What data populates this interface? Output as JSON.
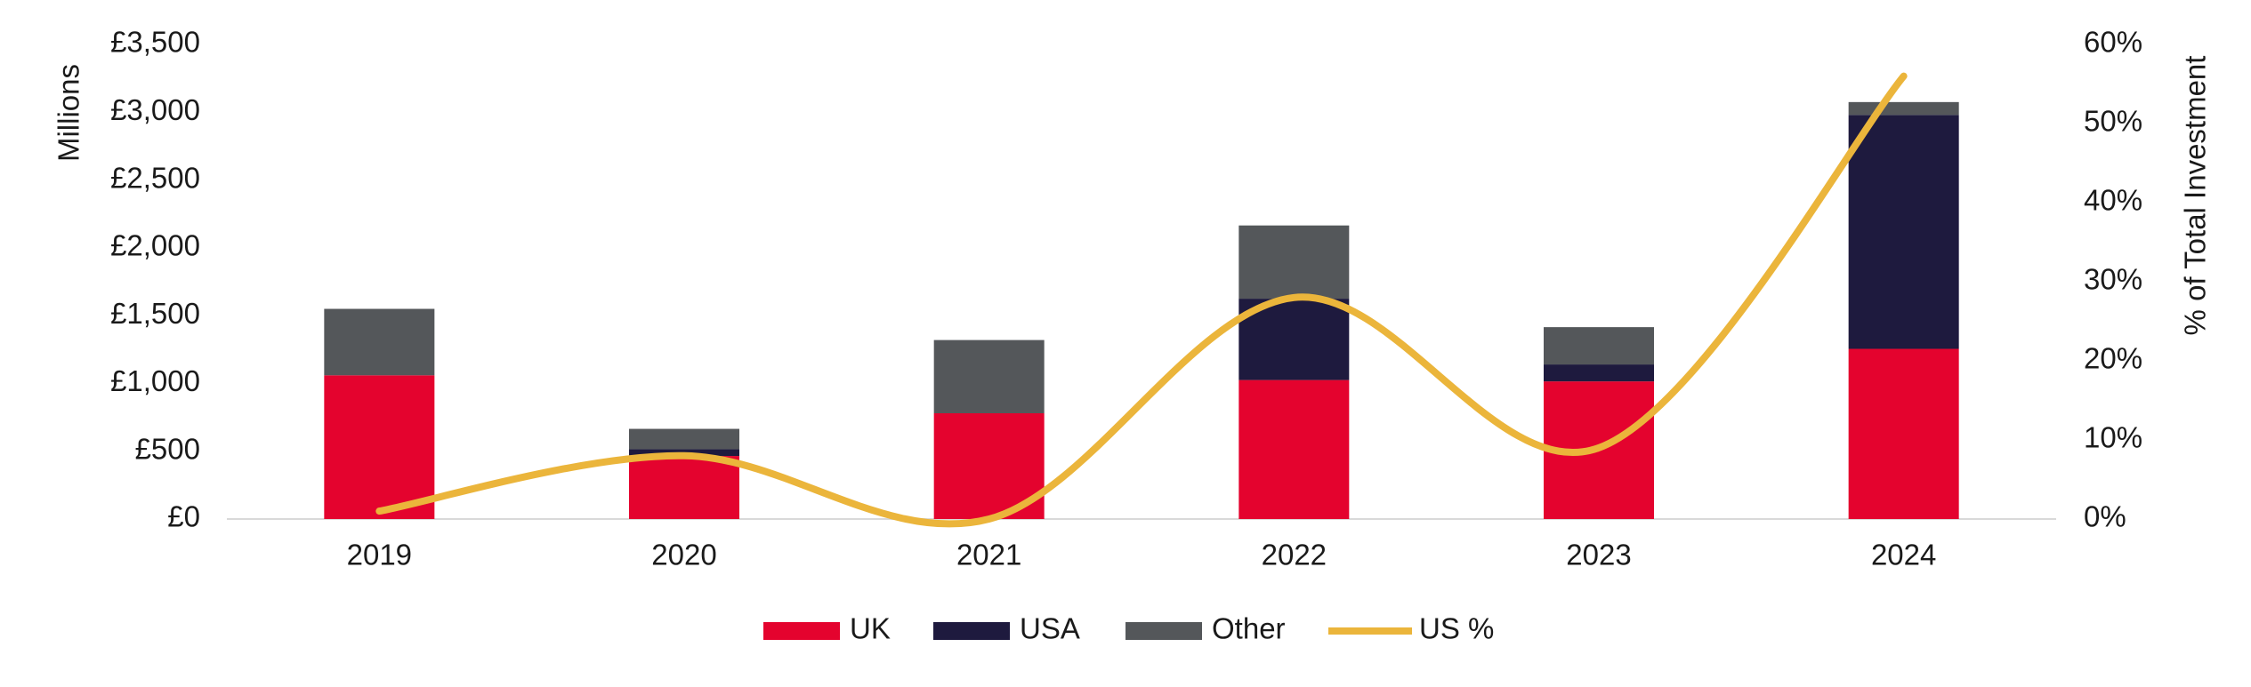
{
  "chart_data": {
    "type": "bar",
    "y_label": "Millions",
    "y2_label": "% of Total Investment",
    "categories": [
      "2019",
      "2020",
      "2021",
      "2022",
      "2023",
      "2024"
    ],
    "series": [
      {
        "name": "UK",
        "color": "#e4032e",
        "values": [
          1060,
          465,
          780,
          1025,
          1015,
          1255
        ]
      },
      {
        "name": "USA",
        "color": "#1e1a3e",
        "values": [
          0,
          50,
          0,
          600,
          125,
          1725
        ]
      },
      {
        "name": "Other",
        "color": "#54575a",
        "values": [
          490,
          150,
          540,
          540,
          275,
          95
        ]
      },
      {
        "name": "US %",
        "color": "#ebb53b",
        "type": "line",
        "axis": "y2",
        "values": [
          1,
          8,
          0,
          28,
          9,
          56
        ]
      }
    ],
    "ylim": [
      0,
      3500
    ],
    "yticks": [
      {
        "value": 0,
        "label": "£0"
      },
      {
        "value": 500,
        "label": "£500"
      },
      {
        "value": 1000,
        "label": "£1,000"
      },
      {
        "value": 1500,
        "label": "£1,500"
      },
      {
        "value": 2000,
        "label": "£2,000"
      },
      {
        "value": 2500,
        "label": "£2,500"
      },
      {
        "value": 3000,
        "label": "£3,000"
      },
      {
        "value": 3500,
        "label": "£3,500"
      }
    ],
    "y2lim": [
      0,
      60
    ],
    "y2ticks": [
      {
        "value": 0,
        "label": "0%"
      },
      {
        "value": 10,
        "label": "10%"
      },
      {
        "value": 20,
        "label": "20%"
      },
      {
        "value": 30,
        "label": "30%"
      },
      {
        "value": 40,
        "label": "40%"
      },
      {
        "value": 50,
        "label": "50%"
      },
      {
        "value": 60,
        "label": "60%"
      }
    ],
    "legend": "bottom"
  }
}
